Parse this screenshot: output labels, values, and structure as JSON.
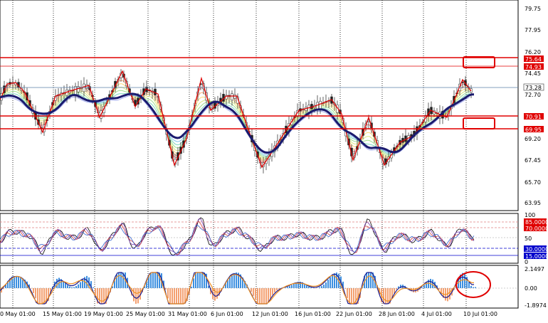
{
  "main_panel": {
    "price_axis": [
      "79.75",
      "77.95",
      "76.20",
      "74.45",
      "72.70",
      "69.20",
      "67.45",
      "65.70",
      "63.95"
    ],
    "price_labels": {
      "level_top": "75.64",
      "level_top2": "74.93",
      "current": "73.28",
      "level_low": "70.91",
      "level_low2": "69.95"
    }
  },
  "oscillator_panel": {
    "axis": [
      "100",
      "50",
      "0"
    ],
    "level_labels": [
      "85.0000",
      "70.0000",
      "30.0000",
      "15.0000"
    ]
  },
  "macd_panel": {
    "axis": [
      "2.1497",
      "0.00",
      "-1.8974"
    ]
  },
  "time_axis": [
    "0 May 01:00",
    "15 May 01:00",
    "19 May 01:00",
    "25 May 01:00",
    "31 May 01:00",
    "6 Jun 01:00",
    "12 Jun 01:00",
    "16 Jun 01:00",
    "22 Jun 01:00",
    "28 Jun 01:00",
    "4 Jul 01:00",
    "10 Jul 01:00"
  ],
  "colors": {
    "level_lines": "#e00000",
    "moving_average": "#1a1a6e",
    "zigzag": "#e00000",
    "histogram_up": "#3c8fe0",
    "histogram_down": "#f4a070",
    "annotation": "#e00000"
  }
}
